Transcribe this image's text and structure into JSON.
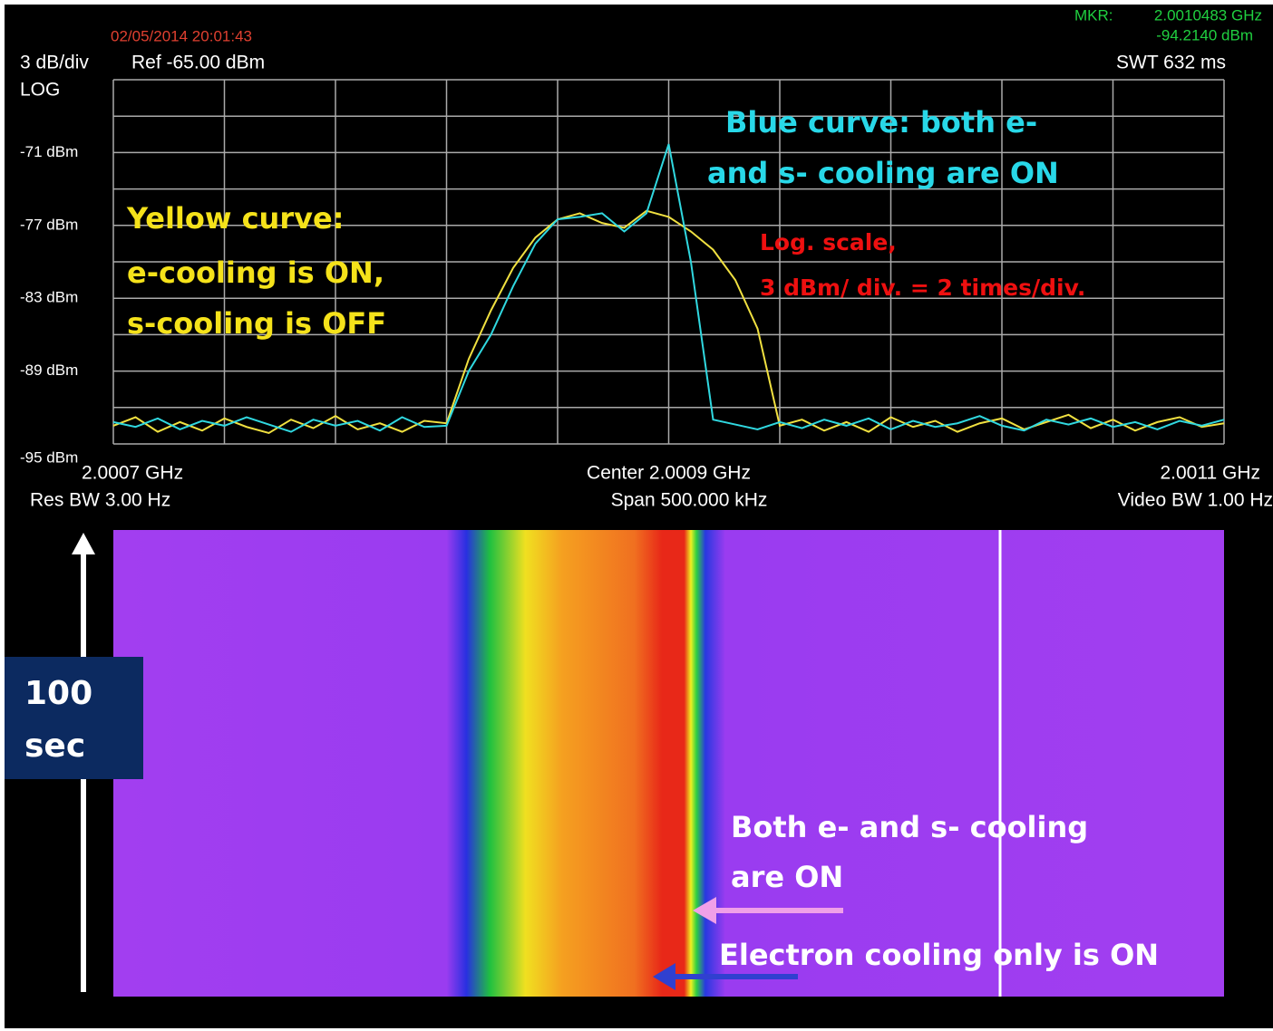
{
  "chart_data": {
    "type": "line",
    "timestamp": "02/05/2014 20:01:43",
    "scale_label": "3 dB/div",
    "ref_label": "Ref -65.00  dBm",
    "log_label": "LOG",
    "swt_label": "SWT 632 ms",
    "marker": {
      "label": "MKR:",
      "freq": "2.0010483 GHz",
      "level": "-94.2140  dBm"
    },
    "res_bw": "Res BW 3.00  Hz",
    "span": "Span 500.000 kHz",
    "video_bw": "Video BW 1.00  Hz",
    "grid": true,
    "ylim": [
      -95,
      -65
    ],
    "yticks": [
      {
        "value": -65,
        "label": null
      },
      {
        "value": -68,
        "label": null
      },
      {
        "value": -71,
        "label": "-71  dBm"
      },
      {
        "value": -74,
        "label": null
      },
      {
        "value": -77,
        "label": "-77  dBm"
      },
      {
        "value": -80,
        "label": null
      },
      {
        "value": -83,
        "label": "-83  dBm"
      },
      {
        "value": -86,
        "label": null
      },
      {
        "value": -89,
        "label": "-89  dBm"
      },
      {
        "value": -92,
        "label": null
      },
      {
        "value": -95,
        "label": "-95  dBm"
      }
    ],
    "xlim": [
      2.00065,
      2.00115
    ],
    "xticks": [
      {
        "value": 2.00065,
        "label": "2.0007 GHz"
      },
      {
        "value": 2.0009,
        "label": "Center 2.0009 GHz"
      },
      {
        "value": 2.00115,
        "label": "2.0011 GHz"
      }
    ],
    "x": [
      2.00065,
      2.00066,
      2.00067,
      2.00068,
      2.00069,
      2.0007,
      2.00071,
      2.00072,
      2.00073,
      2.00074,
      2.00075,
      2.00076,
      2.00077,
      2.00078,
      2.00079,
      2.0008,
      2.00081,
      2.00082,
      2.00083,
      2.00084,
      2.00085,
      2.00086,
      2.00087,
      2.00088,
      2.00089,
      2.0009,
      2.00091,
      2.00092,
      2.00093,
      2.00094,
      2.00095,
      2.00096,
      2.00097,
      2.00098,
      2.00099,
      2.001,
      2.00101,
      2.00102,
      2.00103,
      2.00104,
      2.00105,
      2.00106,
      2.00107,
      2.00108,
      2.00109,
      2.0011,
      2.00111,
      2.00112,
      2.00113,
      2.00114,
      2.00115
    ],
    "series": [
      {
        "name": "Yellow curve",
        "color": "#f0e040",
        "values": [
          -93.5,
          -92.8,
          -94,
          -93.2,
          -93.9,
          -92.9,
          -93.6,
          -94.1,
          -93,
          -93.7,
          -92.7,
          -93.8,
          -93.3,
          -94,
          -93.1,
          -93.3,
          -88,
          -84,
          -80.5,
          -78,
          -76.5,
          -76,
          -76.8,
          -77.2,
          -75.8,
          -76.3,
          -77.5,
          -79,
          -81.5,
          -85.5,
          -93.5,
          -93,
          -93.9,
          -93.2,
          -94,
          -92.8,
          -93.6,
          -93.1,
          -94,
          -93.3,
          -92.9,
          -93.8,
          -93.2,
          -92.6,
          -93.7,
          -93,
          -93.9,
          -93.2,
          -92.8,
          -93.6,
          -93.3
        ]
      },
      {
        "name": "Blue curve",
        "color": "#30d8e0",
        "values": [
          -93.2,
          -93.6,
          -92.9,
          -93.8,
          -93.1,
          -93.5,
          -92.8,
          -93.4,
          -94,
          -93,
          -93.5,
          -93.1,
          -93.9,
          -92.8,
          -93.6,
          -93.5,
          -89,
          -86,
          -82,
          -78.5,
          -76.5,
          -76.3,
          -76,
          -77.5,
          -76,
          -70.3,
          -80,
          -93,
          -93.4,
          -93.8,
          -93.2,
          -93.7,
          -93,
          -93.5,
          -92.9,
          -93.8,
          -93.1,
          -93.6,
          -93.3,
          -92.7,
          -93.5,
          -93.9,
          -93,
          -93.4,
          -92.9,
          -93.6,
          -93.2,
          -93.8,
          -93.1,
          -93.5,
          -93
        ]
      }
    ],
    "annotations": {
      "yellow": [
        "Yellow curve:",
        "e-cooling is ON,",
        "s-cooling is OFF"
      ],
      "blue": [
        "Blue curve:  both e-",
        "and s- cooling are ON"
      ],
      "scale": [
        "Log. scale,",
        "3 dBm/ div. = 2 times/div."
      ],
      "both": [
        "Both e- and s- cooling",
        "are ON"
      ],
      "electron": "Electron cooling only is ON",
      "time": [
        "100",
        "sec"
      ]
    }
  }
}
